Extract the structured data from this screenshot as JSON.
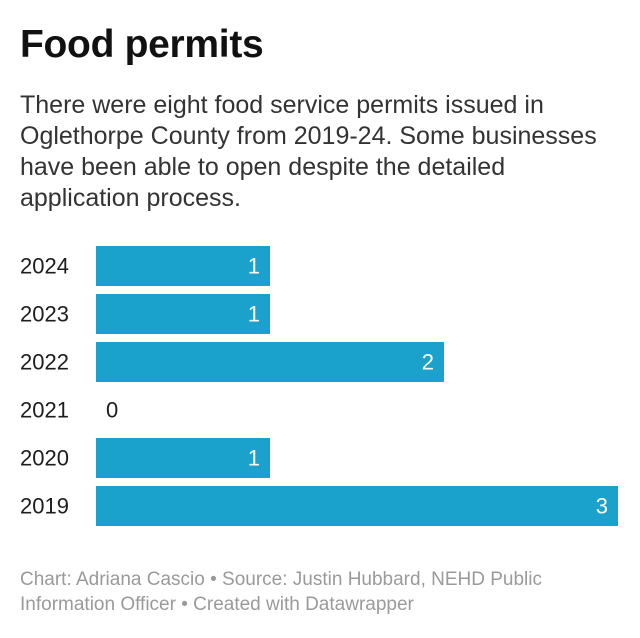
{
  "header": {
    "title": "Food permits",
    "subtitle": "There were eight food service permits issued in Oglethorpe County from 2019-24. Some businesses have been able to open despite the detailed application process."
  },
  "footer": {
    "text": "Chart: Adriana Cascio • Source: Justin Hubbard, NEHD Public Information Officer • Created with Datawrapper"
  },
  "chart_data": {
    "type": "bar",
    "orientation": "horizontal",
    "categories": [
      "2024",
      "2023",
      "2022",
      "2021",
      "2020",
      "2019"
    ],
    "values": [
      1,
      1,
      2,
      0,
      1,
      3
    ],
    "xlim": [
      0,
      3
    ],
    "data_labels": true,
    "grid": false,
    "bar_color": "#1aa1cc",
    "inside_label_color": "#ffffff",
    "outside_label_color": "#1d1d1d"
  }
}
